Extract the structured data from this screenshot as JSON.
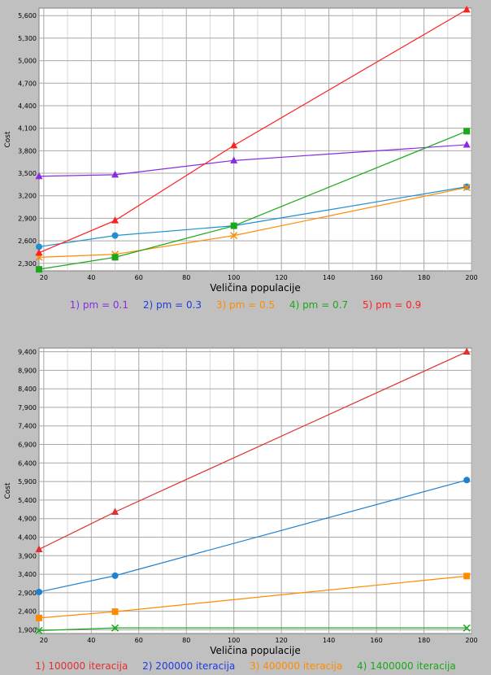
{
  "chart_data": [
    {
      "type": "line",
      "ylabel": "Cost",
      "xlabel": "Veličina populacije",
      "xlim": [
        18,
        200
      ],
      "ylim": [
        2200,
        5700
      ],
      "xticks": [
        "20",
        "40",
        "60",
        "80",
        "100",
        "120",
        "140",
        "160",
        "180",
        "200"
      ],
      "yticks": [
        "2,300",
        "2,600",
        "2,900",
        "3,200",
        "3,500",
        "3,800",
        "4,100",
        "4,400",
        "4,700",
        "5,000",
        "5,300",
        "5,600"
      ],
      "grid": true,
      "legend_position": "bottom",
      "x": [
        18,
        50,
        100,
        198
      ],
      "series": [
        {
          "name": "1) pm = 0.1",
          "color": "#8a2be2",
          "marker": "triangle",
          "values": [
            3460,
            3480,
            3670,
            3880
          ]
        },
        {
          "name": "2) pm = 0.3",
          "color": "#1e90d0",
          "marker": "circle",
          "values": [
            2520,
            2670,
            2800,
            3320
          ]
        },
        {
          "name": "3) pm = 0.5",
          "color": "#ff8c00",
          "marker": "x",
          "values": [
            2380,
            2420,
            2670,
            3310
          ]
        },
        {
          "name": "4) pm = 0.7",
          "color": "#1aa81a",
          "marker": "square",
          "values": [
            2220,
            2380,
            2800,
            4060
          ]
        },
        {
          "name": "5) pm = 0.9",
          "color": "#ff2020",
          "marker": "triangle",
          "values": [
            2440,
            2870,
            3870,
            5680
          ]
        }
      ]
    },
    {
      "type": "line",
      "ylabel": "Cost",
      "xlabel": "Veličina populacije",
      "xlim": [
        18,
        200
      ],
      "ylim": [
        1800,
        9500
      ],
      "xticks": [
        "20",
        "40",
        "60",
        "80",
        "100",
        "120",
        "140",
        "160",
        "180",
        "200"
      ],
      "yticks": [
        "1,900",
        "2,400",
        "2,900",
        "3,400",
        "3,900",
        "4,400",
        "4,900",
        "5,400",
        "5,900",
        "6,400",
        "6,900",
        "7,400",
        "7,900",
        "8,400",
        "8,900",
        "9,400"
      ],
      "grid": true,
      "legend_position": "bottom",
      "x": [
        18,
        50,
        198
      ],
      "series": [
        {
          "name": "1) 100000 iteracija",
          "color": "#e03030",
          "marker": "triangle",
          "values": [
            4070,
            5080,
            9400
          ]
        },
        {
          "name": "2) 200000 iteracija",
          "color": "#1e80d0",
          "marker": "circle",
          "values": [
            2920,
            3360,
            5940
          ]
        },
        {
          "name": "3) 400000 iteracija",
          "color": "#ff8c00",
          "marker": "square",
          "values": [
            2220,
            2390,
            3350
          ]
        },
        {
          "name": "4) 1400000 iteracija",
          "color": "#1aa81a",
          "marker": "x",
          "values": [
            1880,
            1950,
            1950
          ]
        }
      ]
    }
  ]
}
